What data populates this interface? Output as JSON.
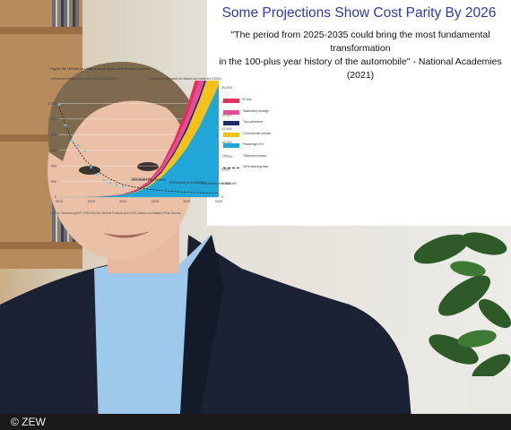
{
  "slide": {
    "title": "Some Projections Show Cost Parity By 2026",
    "quote_line1": "\"The period from 2025-2035 could bring the most fundamental transformation",
    "quote_line2": "in the 100-plus year history of the automobile\" - National Academies (2021)"
  },
  "chart_data": {
    "type": "area",
    "title": "Figure 28: Lithium-ion battery pack prices and demand outlook",
    "ylabel_left": "Lithium-ion battery pack price (real 2020 $/kWh)",
    "ylabel_right": "Cumulative demand for lithium-ion batteries (GWh)",
    "source": "Source: BloombergNEF 2020 Electric Vehicle Outlook and 2020 Lithium-ion Battery Price Survey",
    "x_ticks": [
      "2010",
      "2015",
      "2020",
      "2025",
      "2030",
      "2035"
    ],
    "y_left_ticks": [
      "0",
      "200",
      "400",
      "600",
      "800",
      "1,000",
      "1,200"
    ],
    "y_right_ticks": [
      "0",
      "2,500",
      "5,000",
      "7,500",
      "10,000",
      "12,500",
      "15,000",
      "17,500",
      "20,000"
    ],
    "ylim_left": [
      0,
      1400
    ],
    "ylim_right": [
      0,
      20000
    ],
    "x": [
      2010,
      2012,
      2014,
      2016,
      2018,
      2020,
      2022,
      2024,
      2026,
      2028,
      2030,
      2032,
      2034,
      2035
    ],
    "series": [
      {
        "name": "E-bus",
        "color": "#e2315f",
        "values": [
          0,
          0,
          0,
          0,
          5,
          15,
          40,
          110,
          250,
          500,
          850,
          1300,
          1900,
          2300
        ]
      },
      {
        "name": "Stationary storage",
        "color": "#e84a9a",
        "values": [
          0,
          0,
          0,
          0,
          10,
          30,
          70,
          150,
          320,
          600,
          950,
          1400,
          2000,
          2400
        ]
      },
      {
        "name": "Two-wheelers",
        "color": "#1f2a6e",
        "values": [
          0,
          0,
          0,
          5,
          15,
          30,
          60,
          100,
          160,
          230,
          320,
          420,
          540,
          600
        ]
      },
      {
        "name": "Commercial vehicle",
        "color": "#f2c21b",
        "values": [
          0,
          0,
          0,
          0,
          5,
          15,
          50,
          150,
          400,
          900,
          1600,
          2400,
          3300,
          3800
        ]
      },
      {
        "name": "Passenger EV",
        "color": "#22a6d8",
        "values": [
          0,
          0,
          5,
          25,
          90,
          200,
          450,
          950,
          1800,
          3000,
          4500,
          6500,
          9000,
          10300
        ]
      }
    ],
    "observed_prices": {
      "name": "Observed prices",
      "x": [
        2010,
        2011,
        2012,
        2013,
        2014,
        2015,
        2016,
        2017,
        2018,
        2019,
        2020
      ],
      "values": [
        1191,
        924,
        726,
        668,
        592,
        384,
        295,
        221,
        181,
        157,
        137
      ]
    },
    "learning_rate": {
      "name": "18% learning rate",
      "x": [
        2010,
        2012,
        2014,
        2016,
        2018,
        2020,
        2022,
        2024,
        2026,
        2028,
        2030,
        2032,
        2035
      ],
      "values": [
        1150,
        720,
        480,
        330,
        230,
        160,
        125,
        100,
        85,
        72,
        63,
        56,
        50
      ]
    },
    "annotations": [
      {
        "text": "2023 $101/kWh",
        "x": 2023,
        "y": 101
      },
      {
        "text": "2024 implied price $94/kWh",
        "x": 2024,
        "y": 94
      },
      {
        "text": "2030 implied price $58/kWh",
        "x": 2030,
        "y": 58
      },
      {
        "text": "2035 implied price $45/kWh",
        "x": 2035,
        "y": 45
      }
    ],
    "legend_position": "right"
  },
  "overlay": {
    "copyright": "© ZEW"
  },
  "colors": {
    "title_blue": "#2f3aa8",
    "bar_black": "#1a1a1a",
    "suit_navy": "#1c2233",
    "shirt_blue": "#9ec9ea"
  }
}
